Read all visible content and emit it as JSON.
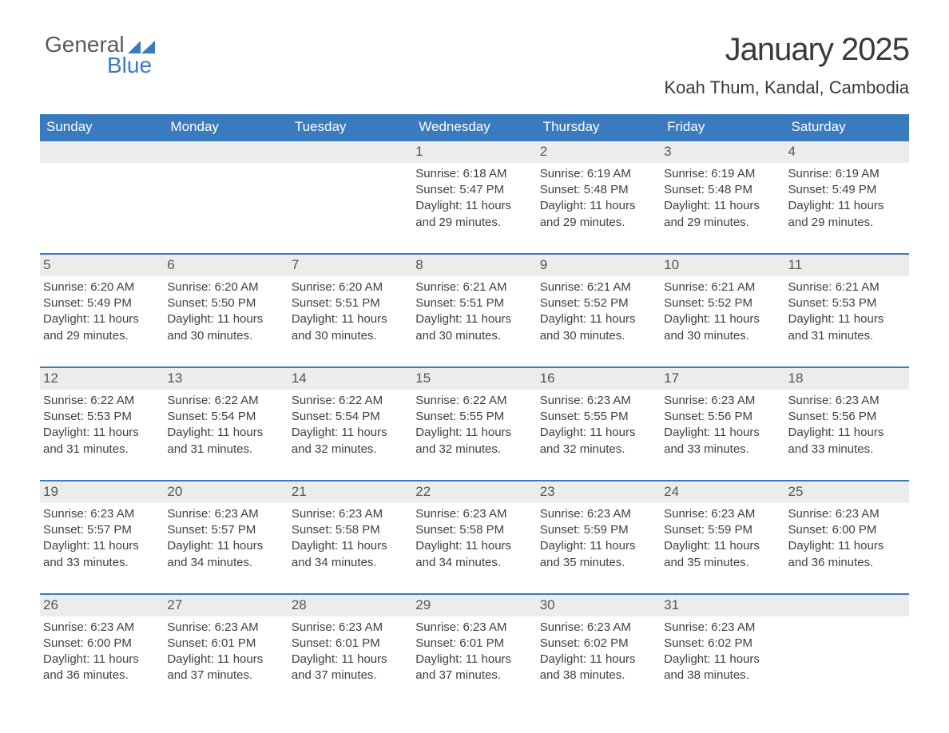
{
  "logo": {
    "line1": "General",
    "line2": "Blue",
    "mark_color": "#3a7bbf"
  },
  "title": "January 2025",
  "location": "Koah Thum, Kandal, Cambodia",
  "weekdays": [
    "Sunday",
    "Monday",
    "Tuesday",
    "Wednesday",
    "Thursday",
    "Friday",
    "Saturday"
  ],
  "colors": {
    "header_bg": "#3a7bbf",
    "header_text": "#ffffff",
    "daynum_bg": "#ececec",
    "text": "#404040",
    "row_border": "#3a7bbf",
    "page_bg": "#ffffff"
  },
  "typography": {
    "title_fontsize": 40,
    "location_fontsize": 22,
    "weekday_fontsize": 17,
    "daynum_fontsize": 17,
    "body_fontsize": 15
  },
  "weeks": [
    [
      {
        "day": "",
        "sunrise": "",
        "sunset": "",
        "daylight": ""
      },
      {
        "day": "",
        "sunrise": "",
        "sunset": "",
        "daylight": ""
      },
      {
        "day": "",
        "sunrise": "",
        "sunset": "",
        "daylight": ""
      },
      {
        "day": "1",
        "sunrise": "Sunrise: 6:18 AM",
        "sunset": "Sunset: 5:47 PM",
        "daylight": "Daylight: 11 hours and 29 minutes."
      },
      {
        "day": "2",
        "sunrise": "Sunrise: 6:19 AM",
        "sunset": "Sunset: 5:48 PM",
        "daylight": "Daylight: 11 hours and 29 minutes."
      },
      {
        "day": "3",
        "sunrise": "Sunrise: 6:19 AM",
        "sunset": "Sunset: 5:48 PM",
        "daylight": "Daylight: 11 hours and 29 minutes."
      },
      {
        "day": "4",
        "sunrise": "Sunrise: 6:19 AM",
        "sunset": "Sunset: 5:49 PM",
        "daylight": "Daylight: 11 hours and 29 minutes."
      }
    ],
    [
      {
        "day": "5",
        "sunrise": "Sunrise: 6:20 AM",
        "sunset": "Sunset: 5:49 PM",
        "daylight": "Daylight: 11 hours and 29 minutes."
      },
      {
        "day": "6",
        "sunrise": "Sunrise: 6:20 AM",
        "sunset": "Sunset: 5:50 PM",
        "daylight": "Daylight: 11 hours and 30 minutes."
      },
      {
        "day": "7",
        "sunrise": "Sunrise: 6:20 AM",
        "sunset": "Sunset: 5:51 PM",
        "daylight": "Daylight: 11 hours and 30 minutes."
      },
      {
        "day": "8",
        "sunrise": "Sunrise: 6:21 AM",
        "sunset": "Sunset: 5:51 PM",
        "daylight": "Daylight: 11 hours and 30 minutes."
      },
      {
        "day": "9",
        "sunrise": "Sunrise: 6:21 AM",
        "sunset": "Sunset: 5:52 PM",
        "daylight": "Daylight: 11 hours and 30 minutes."
      },
      {
        "day": "10",
        "sunrise": "Sunrise: 6:21 AM",
        "sunset": "Sunset: 5:52 PM",
        "daylight": "Daylight: 11 hours and 30 minutes."
      },
      {
        "day": "11",
        "sunrise": "Sunrise: 6:21 AM",
        "sunset": "Sunset: 5:53 PM",
        "daylight": "Daylight: 11 hours and 31 minutes."
      }
    ],
    [
      {
        "day": "12",
        "sunrise": "Sunrise: 6:22 AM",
        "sunset": "Sunset: 5:53 PM",
        "daylight": "Daylight: 11 hours and 31 minutes."
      },
      {
        "day": "13",
        "sunrise": "Sunrise: 6:22 AM",
        "sunset": "Sunset: 5:54 PM",
        "daylight": "Daylight: 11 hours and 31 minutes."
      },
      {
        "day": "14",
        "sunrise": "Sunrise: 6:22 AM",
        "sunset": "Sunset: 5:54 PM",
        "daylight": "Daylight: 11 hours and 32 minutes."
      },
      {
        "day": "15",
        "sunrise": "Sunrise: 6:22 AM",
        "sunset": "Sunset: 5:55 PM",
        "daylight": "Daylight: 11 hours and 32 minutes."
      },
      {
        "day": "16",
        "sunrise": "Sunrise: 6:23 AM",
        "sunset": "Sunset: 5:55 PM",
        "daylight": "Daylight: 11 hours and 32 minutes."
      },
      {
        "day": "17",
        "sunrise": "Sunrise: 6:23 AM",
        "sunset": "Sunset: 5:56 PM",
        "daylight": "Daylight: 11 hours and 33 minutes."
      },
      {
        "day": "18",
        "sunrise": "Sunrise: 6:23 AM",
        "sunset": "Sunset: 5:56 PM",
        "daylight": "Daylight: 11 hours and 33 minutes."
      }
    ],
    [
      {
        "day": "19",
        "sunrise": "Sunrise: 6:23 AM",
        "sunset": "Sunset: 5:57 PM",
        "daylight": "Daylight: 11 hours and 33 minutes."
      },
      {
        "day": "20",
        "sunrise": "Sunrise: 6:23 AM",
        "sunset": "Sunset: 5:57 PM",
        "daylight": "Daylight: 11 hours and 34 minutes."
      },
      {
        "day": "21",
        "sunrise": "Sunrise: 6:23 AM",
        "sunset": "Sunset: 5:58 PM",
        "daylight": "Daylight: 11 hours and 34 minutes."
      },
      {
        "day": "22",
        "sunrise": "Sunrise: 6:23 AM",
        "sunset": "Sunset: 5:58 PM",
        "daylight": "Daylight: 11 hours and 34 minutes."
      },
      {
        "day": "23",
        "sunrise": "Sunrise: 6:23 AM",
        "sunset": "Sunset: 5:59 PM",
        "daylight": "Daylight: 11 hours and 35 minutes."
      },
      {
        "day": "24",
        "sunrise": "Sunrise: 6:23 AM",
        "sunset": "Sunset: 5:59 PM",
        "daylight": "Daylight: 11 hours and 35 minutes."
      },
      {
        "day": "25",
        "sunrise": "Sunrise: 6:23 AM",
        "sunset": "Sunset: 6:00 PM",
        "daylight": "Daylight: 11 hours and 36 minutes."
      }
    ],
    [
      {
        "day": "26",
        "sunrise": "Sunrise: 6:23 AM",
        "sunset": "Sunset: 6:00 PM",
        "daylight": "Daylight: 11 hours and 36 minutes."
      },
      {
        "day": "27",
        "sunrise": "Sunrise: 6:23 AM",
        "sunset": "Sunset: 6:01 PM",
        "daylight": "Daylight: 11 hours and 37 minutes."
      },
      {
        "day": "28",
        "sunrise": "Sunrise: 6:23 AM",
        "sunset": "Sunset: 6:01 PM",
        "daylight": "Daylight: 11 hours and 37 minutes."
      },
      {
        "day": "29",
        "sunrise": "Sunrise: 6:23 AM",
        "sunset": "Sunset: 6:01 PM",
        "daylight": "Daylight: 11 hours and 37 minutes."
      },
      {
        "day": "30",
        "sunrise": "Sunrise: 6:23 AM",
        "sunset": "Sunset: 6:02 PM",
        "daylight": "Daylight: 11 hours and 38 minutes."
      },
      {
        "day": "31",
        "sunrise": "Sunrise: 6:23 AM",
        "sunset": "Sunset: 6:02 PM",
        "daylight": "Daylight: 11 hours and 38 minutes."
      },
      {
        "day": "",
        "sunrise": "",
        "sunset": "",
        "daylight": ""
      }
    ]
  ]
}
